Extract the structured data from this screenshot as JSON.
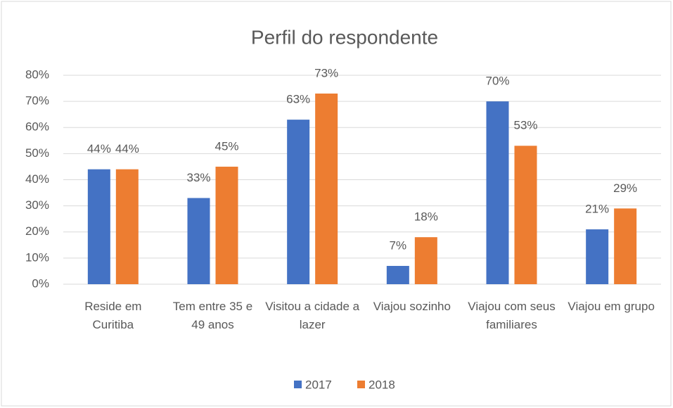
{
  "chart_data": {
    "type": "bar",
    "title": "Perfil do respondente",
    "categories": [
      "Reside em Curitiba",
      "Tem entre 35 e 49 anos",
      "Visitou a cidade a lazer",
      "Viajou sozinho",
      "Viajou com seus familiares",
      "Viajou em grupo"
    ],
    "series": [
      {
        "name": "2017",
        "color": "#4472c4",
        "values": [
          44,
          33,
          63,
          7,
          70,
          21
        ],
        "value_labels": [
          "44%",
          "33%",
          "63%",
          "7%",
          "70%",
          "21%"
        ]
      },
      {
        "name": "2018",
        "color": "#ed7d31",
        "values": [
          44,
          45,
          73,
          18,
          53,
          29
        ],
        "value_labels": [
          "44%",
          "45%",
          "73%",
          "18%",
          "53%",
          "29%"
        ]
      }
    ],
    "ylim": [
      0,
      80
    ],
    "yticks": [
      {
        "value": 0,
        "label": "0%"
      },
      {
        "value": 10,
        "label": "10%"
      },
      {
        "value": 20,
        "label": "20%"
      },
      {
        "value": 30,
        "label": "30%"
      },
      {
        "value": 40,
        "label": "40%"
      },
      {
        "value": 50,
        "label": "50%"
      },
      {
        "value": 60,
        "label": "60%"
      },
      {
        "value": 70,
        "label": "70%"
      },
      {
        "value": 80,
        "label": "80%"
      }
    ],
    "grid": true,
    "legend": "bottom"
  }
}
